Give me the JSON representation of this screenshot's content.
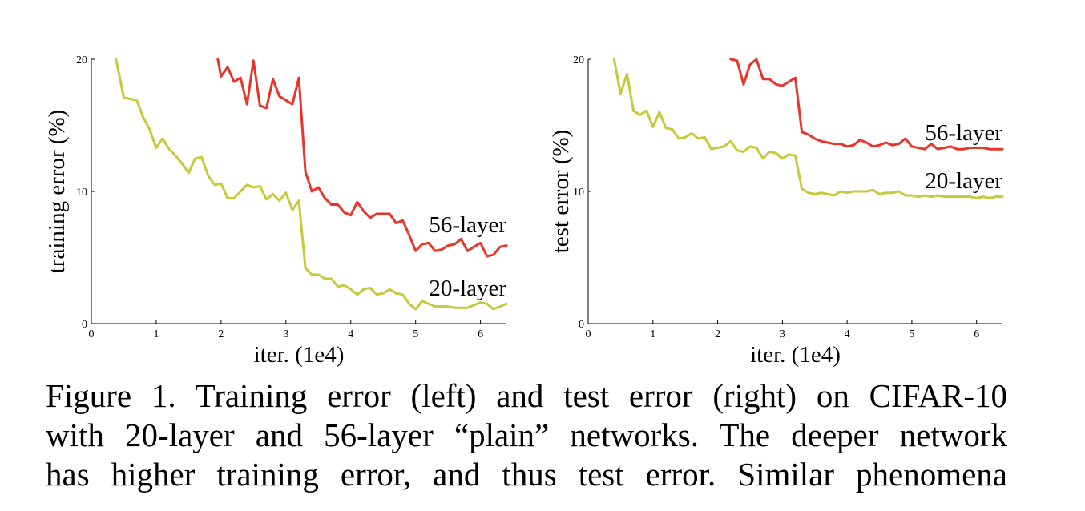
{
  "chart_data": [
    {
      "type": "line",
      "xlabel": "iter. (1e4)",
      "ylabel": "training error (%)",
      "xlim": [
        0,
        6.4
      ],
      "ylim": [
        0,
        20
      ],
      "xticks": [
        "0",
        "1",
        "2",
        "3",
        "4",
        "5",
        "6"
      ],
      "yticks": [
        "0",
        "10",
        "20"
      ],
      "grid": false,
      "series": [
        {
          "name": "56-layer",
          "color": "#e8352a",
          "x": [
            1.95,
            2.0,
            2.1,
            2.2,
            2.3,
            2.4,
            2.5,
            2.6,
            2.7,
            2.8,
            2.9,
            3.0,
            3.1,
            3.2,
            3.3,
            3.4,
            3.5,
            3.6,
            3.7,
            3.8,
            3.9,
            4.0,
            4.1,
            4.2,
            4.3,
            4.4,
            4.5,
            4.6,
            4.7,
            4.8,
            4.9,
            5.0,
            5.1,
            5.2,
            5.3,
            5.4,
            5.5,
            5.6,
            5.7,
            5.8,
            5.9,
            6.0,
            6.1,
            6.2,
            6.3,
            6.4
          ],
          "y": [
            20.0,
            18.7,
            19.4,
            18.3,
            18.6,
            16.6,
            19.9,
            16.5,
            16.3,
            18.5,
            17.2,
            16.9,
            16.6,
            18.6,
            11.5,
            10.0,
            10.3,
            9.5,
            9.0,
            9.0,
            8.4,
            8.2,
            9.2,
            8.5,
            8.0,
            8.3,
            8.3,
            8.3,
            7.6,
            7.8,
            6.7,
            5.5,
            6.0,
            6.1,
            5.5,
            5.6,
            5.9,
            6.0,
            6.4,
            5.5,
            5.8,
            6.1,
            5.1,
            5.2,
            5.8,
            5.9
          ]
        },
        {
          "name": "20-layer",
          "color": "#c8c83c",
          "x": [
            0.38,
            0.5,
            0.6,
            0.7,
            0.8,
            0.9,
            1.0,
            1.1,
            1.2,
            1.3,
            1.4,
            1.5,
            1.6,
            1.7,
            1.8,
            1.9,
            2.0,
            2.1,
            2.2,
            2.3,
            2.4,
            2.5,
            2.6,
            2.7,
            2.8,
            2.9,
            3.0,
            3.1,
            3.2,
            3.3,
            3.4,
            3.5,
            3.6,
            3.7,
            3.8,
            3.9,
            4.0,
            4.1,
            4.2,
            4.3,
            4.4,
            4.5,
            4.6,
            4.7,
            4.8,
            4.9,
            5.0,
            5.1,
            5.2,
            5.3,
            5.4,
            5.5,
            5.6,
            5.7,
            5.8,
            5.9,
            6.0,
            6.1,
            6.2,
            6.3,
            6.4
          ],
          "y": [
            20.0,
            17.1,
            17.0,
            16.9,
            15.6,
            14.7,
            13.3,
            14.0,
            13.2,
            12.7,
            12.1,
            11.4,
            12.5,
            12.6,
            11.2,
            10.5,
            10.6,
            9.5,
            9.5,
            10.0,
            10.5,
            10.3,
            10.4,
            9.4,
            9.8,
            9.3,
            9.9,
            8.6,
            9.3,
            4.2,
            3.7,
            3.7,
            3.4,
            3.4,
            2.8,
            2.9,
            2.6,
            2.2,
            2.6,
            2.7,
            2.2,
            2.3,
            2.6,
            2.3,
            2.2,
            1.5,
            1.1,
            1.7,
            1.5,
            1.3,
            1.3,
            1.3,
            1.2,
            1.2,
            1.2,
            1.4,
            1.6,
            1.5,
            1.1,
            1.3,
            1.5
          ]
        }
      ]
    },
    {
      "type": "line",
      "xlabel": "iter. (1e4)",
      "ylabel": "test error (%)",
      "xlim": [
        0,
        6.4
      ],
      "ylim": [
        0,
        20
      ],
      "xticks": [
        "0",
        "1",
        "2",
        "3",
        "4",
        "5",
        "6"
      ],
      "yticks": [
        "0",
        "10",
        "20"
      ],
      "grid": false,
      "series": [
        {
          "name": "56-layer",
          "color": "#e8352a",
          "x": [
            2.2,
            2.3,
            2.4,
            2.5,
            2.6,
            2.7,
            2.8,
            2.9,
            3.0,
            3.1,
            3.2,
            3.3,
            3.4,
            3.5,
            3.6,
            3.7,
            3.8,
            3.9,
            4.0,
            4.1,
            4.2,
            4.3,
            4.4,
            4.5,
            4.6,
            4.7,
            4.8,
            4.9,
            5.0,
            5.1,
            5.2,
            5.3,
            5.4,
            5.5,
            5.6,
            5.7,
            5.8,
            5.9,
            6.0,
            6.1,
            6.2,
            6.3,
            6.4
          ],
          "y": [
            20.0,
            19.9,
            18.1,
            19.6,
            20.0,
            18.5,
            18.5,
            18.1,
            18.0,
            18.3,
            18.6,
            14.5,
            14.3,
            14.0,
            13.8,
            13.7,
            13.6,
            13.6,
            13.4,
            13.5,
            13.9,
            13.7,
            13.4,
            13.5,
            13.7,
            13.5,
            13.6,
            14.0,
            13.4,
            13.3,
            13.2,
            13.6,
            13.2,
            13.3,
            13.4,
            13.2,
            13.2,
            13.3,
            13.3,
            13.3,
            13.2,
            13.2,
            13.2
          ]
        },
        {
          "name": "20-layer",
          "color": "#c8c83c",
          "x": [
            0.4,
            0.5,
            0.6,
            0.7,
            0.8,
            0.9,
            1.0,
            1.1,
            1.2,
            1.3,
            1.4,
            1.5,
            1.6,
            1.7,
            1.8,
            1.9,
            2.0,
            2.1,
            2.2,
            2.3,
            2.4,
            2.5,
            2.6,
            2.7,
            2.8,
            2.9,
            3.0,
            3.1,
            3.2,
            3.3,
            3.4,
            3.5,
            3.6,
            3.7,
            3.8,
            3.9,
            4.0,
            4.1,
            4.2,
            4.3,
            4.4,
            4.5,
            4.6,
            4.7,
            4.8,
            4.9,
            5.0,
            5.1,
            5.2,
            5.3,
            5.4,
            5.5,
            5.6,
            5.7,
            5.8,
            5.9,
            6.0,
            6.1,
            6.2,
            6.3,
            6.4
          ],
          "y": [
            20.0,
            17.4,
            18.9,
            16.1,
            15.8,
            16.1,
            14.9,
            16.0,
            14.8,
            14.7,
            14.0,
            14.1,
            14.4,
            14.0,
            14.1,
            13.2,
            13.3,
            13.4,
            13.8,
            13.1,
            13.0,
            13.4,
            13.3,
            12.5,
            13.0,
            12.9,
            12.5,
            12.8,
            12.7,
            10.2,
            9.9,
            9.8,
            9.9,
            9.8,
            9.7,
            10.0,
            9.9,
            10.0,
            10.0,
            10.0,
            10.1,
            9.8,
            9.9,
            9.9,
            10.0,
            9.7,
            9.7,
            9.6,
            9.7,
            9.6,
            9.7,
            9.6,
            9.6,
            9.6,
            9.6,
            9.6,
            9.5,
            9.6,
            9.5,
            9.6,
            9.6
          ]
        }
      ]
    }
  ],
  "caption": {
    "lines": [
      "Figure 1. Training error (left) and test error (right) on CIFAR-10",
      "with 20-layer and 56-layer “plain” networks. The deeper network",
      "has higher training error, and thus test error. Similar phenomena"
    ]
  }
}
